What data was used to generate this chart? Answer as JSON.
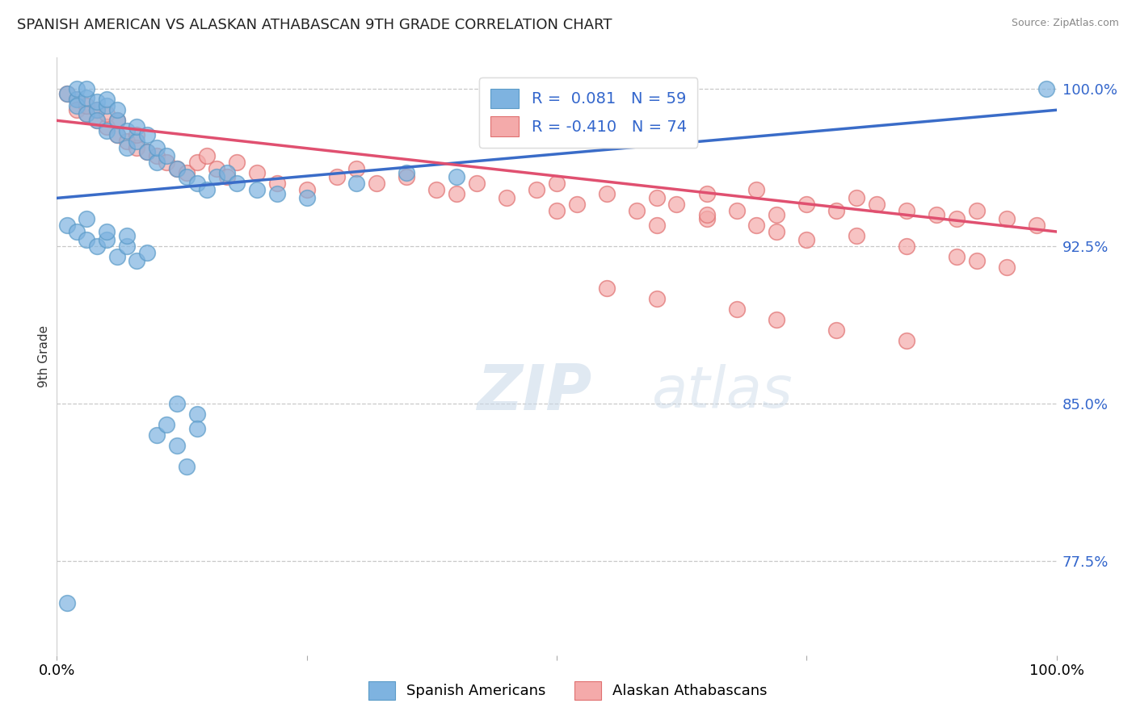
{
  "title": "SPANISH AMERICAN VS ALASKAN ATHABASCAN 9TH GRADE CORRELATION CHART",
  "source": "Source: ZipAtlas.com",
  "ylabel": "9th Grade",
  "xmin": 0.0,
  "xmax": 1.0,
  "ymin": 73.0,
  "ymax": 101.5,
  "blue_color": "#7EB3E0",
  "blue_edge": "#5B9BC8",
  "pink_color": "#F4AAAA",
  "pink_edge": "#E07070",
  "blue_line_color": "#3A6CC8",
  "pink_line_color": "#E05070",
  "blue_R": 0.081,
  "blue_N": 59,
  "pink_R": -0.41,
  "pink_N": 74,
  "ytick_vals": [
    77.5,
    85.0,
    92.5,
    100.0
  ],
  "blue_trend_x0": 0.0,
  "blue_trend_y0": 94.8,
  "blue_trend_x1": 1.0,
  "blue_trend_y1": 99.0,
  "pink_trend_x0": 0.0,
  "pink_trend_y0": 98.5,
  "pink_trend_x1": 1.0,
  "pink_trend_y1": 93.2,
  "blue_scatter_x": [
    0.01,
    0.02,
    0.02,
    0.02,
    0.03,
    0.03,
    0.03,
    0.04,
    0.04,
    0.04,
    0.05,
    0.05,
    0.05,
    0.06,
    0.06,
    0.06,
    0.07,
    0.07,
    0.08,
    0.08,
    0.09,
    0.09,
    0.1,
    0.1,
    0.11,
    0.12,
    0.13,
    0.14,
    0.15,
    0.16,
    0.17,
    0.18,
    0.2,
    0.22,
    0.25,
    0.3,
    0.35,
    0.4,
    0.01,
    0.02,
    0.03,
    0.03,
    0.04,
    0.05,
    0.05,
    0.06,
    0.07,
    0.07,
    0.08,
    0.09,
    0.1,
    0.11,
    0.12,
    0.12,
    0.13,
    0.14,
    0.14,
    0.99,
    0.01
  ],
  "blue_scatter_y": [
    99.8,
    99.5,
    100.0,
    99.2,
    99.6,
    98.8,
    100.0,
    99.0,
    99.4,
    98.5,
    99.2,
    98.0,
    99.5,
    97.8,
    98.5,
    99.0,
    97.2,
    98.0,
    97.5,
    98.2,
    97.0,
    97.8,
    96.5,
    97.2,
    96.8,
    96.2,
    95.8,
    95.5,
    95.2,
    95.8,
    96.0,
    95.5,
    95.2,
    95.0,
    94.8,
    95.5,
    96.0,
    95.8,
    93.5,
    93.2,
    92.8,
    93.8,
    92.5,
    92.8,
    93.2,
    92.0,
    92.5,
    93.0,
    91.8,
    92.2,
    83.5,
    84.0,
    83.0,
    85.0,
    82.0,
    84.5,
    83.8,
    100.0,
    75.5
  ],
  "pink_scatter_x": [
    0.01,
    0.02,
    0.02,
    0.03,
    0.03,
    0.04,
    0.04,
    0.05,
    0.05,
    0.06,
    0.06,
    0.07,
    0.08,
    0.08,
    0.09,
    0.1,
    0.11,
    0.12,
    0.13,
    0.14,
    0.15,
    0.16,
    0.17,
    0.18,
    0.2,
    0.22,
    0.25,
    0.28,
    0.3,
    0.32,
    0.35,
    0.38,
    0.4,
    0.42,
    0.45,
    0.48,
    0.5,
    0.52,
    0.55,
    0.58,
    0.6,
    0.62,
    0.65,
    0.68,
    0.7,
    0.72,
    0.75,
    0.78,
    0.8,
    0.82,
    0.85,
    0.88,
    0.9,
    0.92,
    0.95,
    0.98,
    0.5,
    0.6,
    0.65,
    0.65,
    0.7,
    0.72,
    0.75,
    0.8,
    0.85,
    0.9,
    0.92,
    0.95,
    0.55,
    0.6,
    0.68,
    0.72,
    0.78,
    0.85
  ],
  "pink_scatter_y": [
    99.8,
    99.5,
    99.0,
    98.8,
    99.2,
    98.5,
    99.0,
    98.2,
    98.8,
    97.8,
    98.5,
    97.5,
    97.2,
    97.8,
    97.0,
    96.8,
    96.5,
    96.2,
    96.0,
    96.5,
    96.8,
    96.2,
    95.8,
    96.5,
    96.0,
    95.5,
    95.2,
    95.8,
    96.2,
    95.5,
    95.8,
    95.2,
    95.0,
    95.5,
    94.8,
    95.2,
    95.5,
    94.5,
    95.0,
    94.2,
    94.8,
    94.5,
    95.0,
    94.2,
    95.2,
    94.0,
    94.5,
    94.2,
    94.8,
    94.5,
    94.2,
    94.0,
    93.8,
    94.2,
    93.8,
    93.5,
    94.2,
    93.5,
    93.8,
    94.0,
    93.5,
    93.2,
    92.8,
    93.0,
    92.5,
    92.0,
    91.8,
    91.5,
    90.5,
    90.0,
    89.5,
    89.0,
    88.5,
    88.0
  ]
}
